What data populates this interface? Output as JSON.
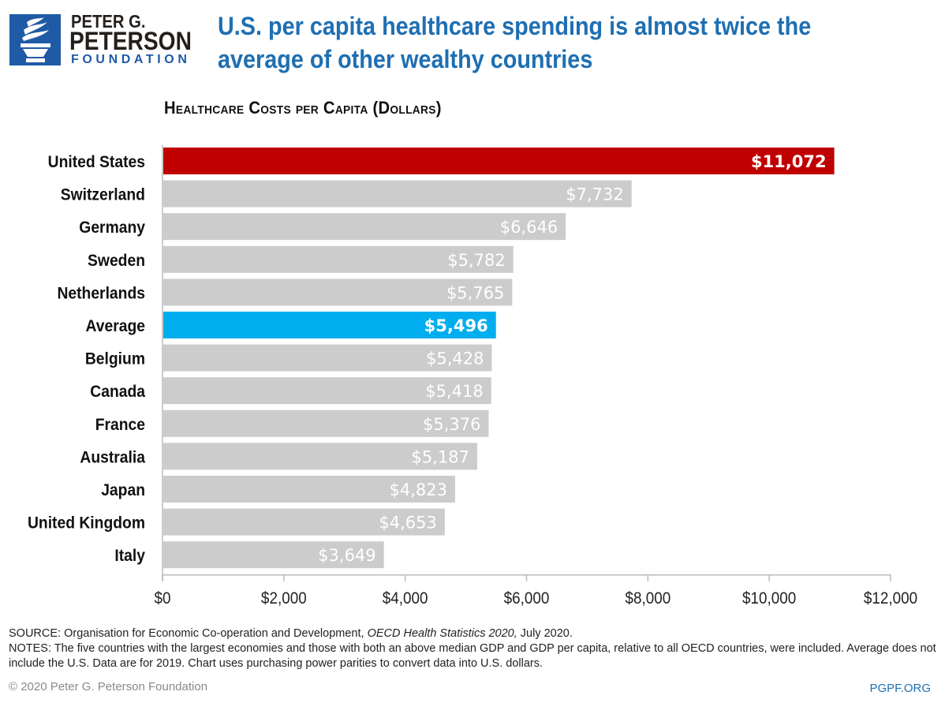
{
  "brand": {
    "line1": "PETER G.",
    "line2": "PETERSON",
    "line3": "FOUNDATION",
    "colors": {
      "blue": "#1f5aa6",
      "dark": "#231f1c"
    }
  },
  "headline": "U.S. per capita healthcare spending is almost twice the average of other wealthy countries",
  "chart_data": {
    "type": "bar",
    "orientation": "horizontal",
    "title": "Healthcare Costs per Capita (Dollars)",
    "xlabel": "",
    "ylabel": "",
    "categories": [
      "United States",
      "Switzerland",
      "Germany",
      "Sweden",
      "Netherlands",
      "Average",
      "Belgium",
      "Canada",
      "France",
      "Australia",
      "Japan",
      "United Kingdom",
      "Italy"
    ],
    "values": [
      11072,
      7732,
      6646,
      5782,
      5765,
      5496,
      5428,
      5418,
      5376,
      5187,
      4823,
      4653,
      3649
    ],
    "data_labels": [
      "$11,072",
      "$7,732",
      "$6,646",
      "$5,782",
      "$5,765",
      "$5,496",
      "$5,428",
      "$5,418",
      "$5,376",
      "$5,187",
      "$4,823",
      "$4,653",
      "$3,649"
    ],
    "highlight": {
      "United States": "#c00000",
      "Average": "#00aeef"
    },
    "default_color": "#cccccc",
    "xlim": [
      0,
      12000
    ],
    "xticks": [
      0,
      2000,
      4000,
      6000,
      8000,
      10000,
      12000
    ],
    "xtick_labels": [
      "$0",
      "$2,000",
      "$4,000",
      "$6,000",
      "$8,000",
      "$10,000",
      "$12,000"
    ],
    "grid": false,
    "legend": "none"
  },
  "footer": {
    "source_prefix": "SOURCE: Organisation for Economic Co-operation and Development, ",
    "source_italic": "OECD Health Statistics 2020,",
    "source_suffix": " July 2020.",
    "notes": "NOTES: The five countries with the largest economies and those with both an above median GDP and GDP per capita, relative to all OECD countries, were included. Average does not include the U.S. Data are for 2019. Chart uses purchasing power parities to convert data into U.S. dollars.",
    "copyright": "© 2020 Peter G. Peterson Foundation",
    "site": "PGPF.ORG"
  }
}
